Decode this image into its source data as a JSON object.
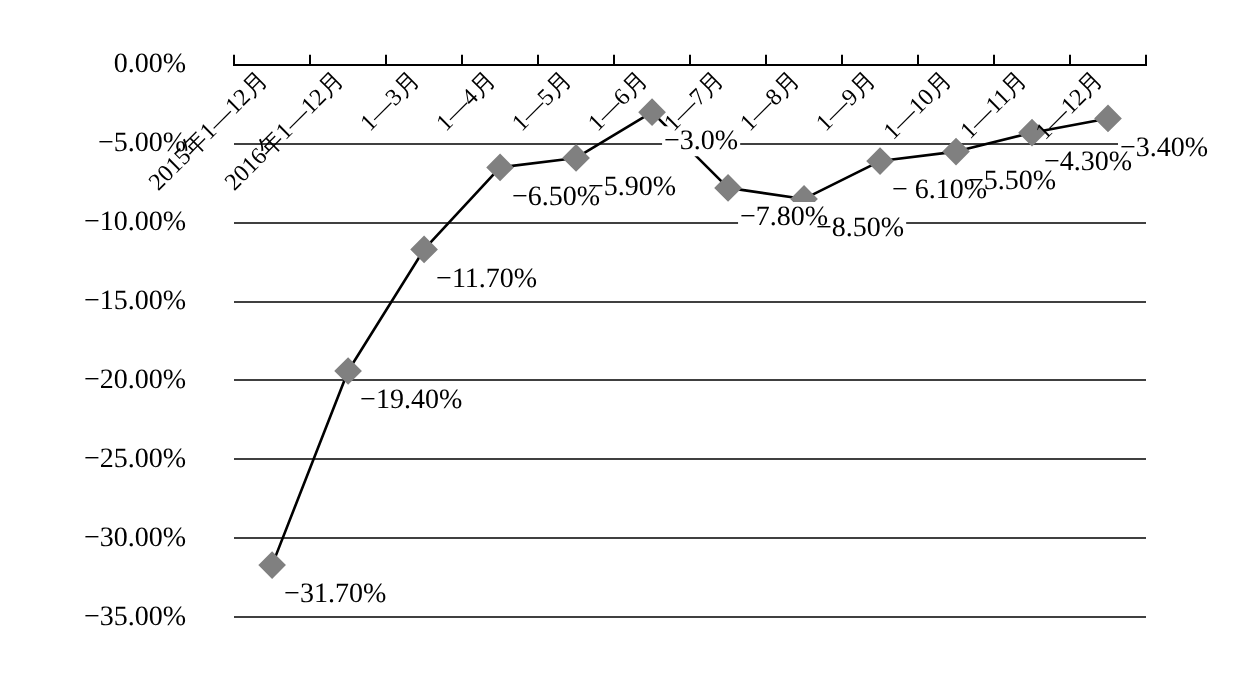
{
  "chart_data": {
    "type": "line",
    "categories": [
      "2015年1—12月",
      "2016年1—12月",
      "1—3月",
      "1—4月",
      "1—5月",
      "1—6月",
      "1—7月",
      "1—8月",
      "1—9月",
      "1—10月",
      "1—11月",
      "1—12月"
    ],
    "series": [
      {
        "color": "#808080",
        "values": [
          -31.7,
          -19.4,
          -11.7,
          -6.5,
          -5.9,
          -3.0,
          -7.8,
          -8.5,
          -6.1,
          -5.5,
          -4.3,
          -3.4
        ],
        "value_labels": [
          "−31.70%",
          "−19.40%",
          "−11.70%",
          "−6.50%",
          "−5.90%",
          "−3.0%",
          "−7.80%",
          "−8.50%",
          "− 6.10%",
          "−5.50%",
          "−4.30%",
          "−3.40%"
        ]
      }
    ],
    "ylim": [
      -35,
      0
    ],
    "yticks": [
      {
        "value": 0,
        "label": "0.00%"
      },
      {
        "value": -5,
        "label": "−5.00%"
      },
      {
        "value": -10,
        "label": "−10.00%"
      },
      {
        "value": -15,
        "label": "−15.00%"
      },
      {
        "value": -20,
        "label": "−20.00%"
      },
      {
        "value": -25,
        "label": "−25.00%"
      },
      {
        "value": -30,
        "label": "−30.00%"
      },
      {
        "value": -35,
        "label": "−35.00%"
      }
    ],
    "grid": "y",
    "legend": false,
    "marker": "diamond",
    "line_style": "solid"
  }
}
